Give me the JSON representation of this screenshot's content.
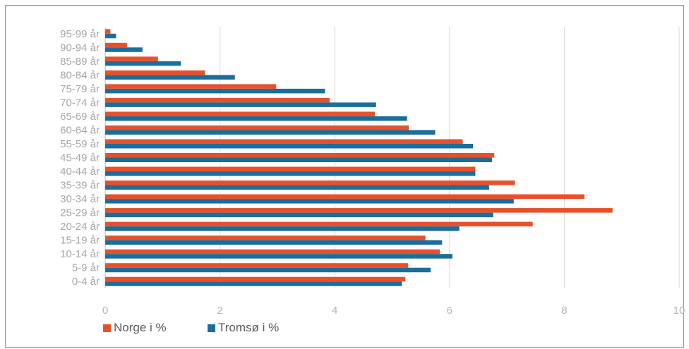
{
  "chart_data": {
    "type": "bar",
    "orientation": "horizontal",
    "categories": [
      "0-4 år",
      "5-9 år",
      "10-14 år",
      "15-19 år",
      "20-24 år",
      "25-29 år",
      "30-34 år",
      "35-39 år",
      "40-44 år",
      "45-49 år",
      "55-59 år",
      "60-64 år",
      "65-69 år",
      "70-74 år",
      "75-79 år",
      "80-84 år",
      "85-89 år",
      "90-94 år",
      "95-99 år"
    ],
    "series": [
      {
        "name": "Norge i %",
        "color": "#e8502a",
        "values": [
          5.23,
          5.28,
          5.83,
          5.58,
          7.45,
          8.84,
          8.35,
          7.14,
          6.45,
          6.78,
          6.23,
          5.29,
          4.7,
          3.91,
          2.98,
          1.74,
          0.92,
          0.38,
          0.09
        ]
      },
      {
        "name": "Tromsø i %",
        "color": "#1b6e9c",
        "values": [
          5.17,
          5.67,
          6.05,
          5.87,
          6.17,
          6.76,
          7.12,
          6.69,
          6.45,
          6.74,
          6.41,
          5.75,
          5.26,
          4.72,
          3.83,
          2.26,
          1.32,
          0.65,
          0.19
        ]
      }
    ],
    "xlim": [
      0,
      10
    ],
    "xticks": [
      "0",
      "2",
      "4",
      "6",
      "8",
      "10"
    ],
    "grid": "vertical",
    "legend_position": "bottom-left"
  }
}
